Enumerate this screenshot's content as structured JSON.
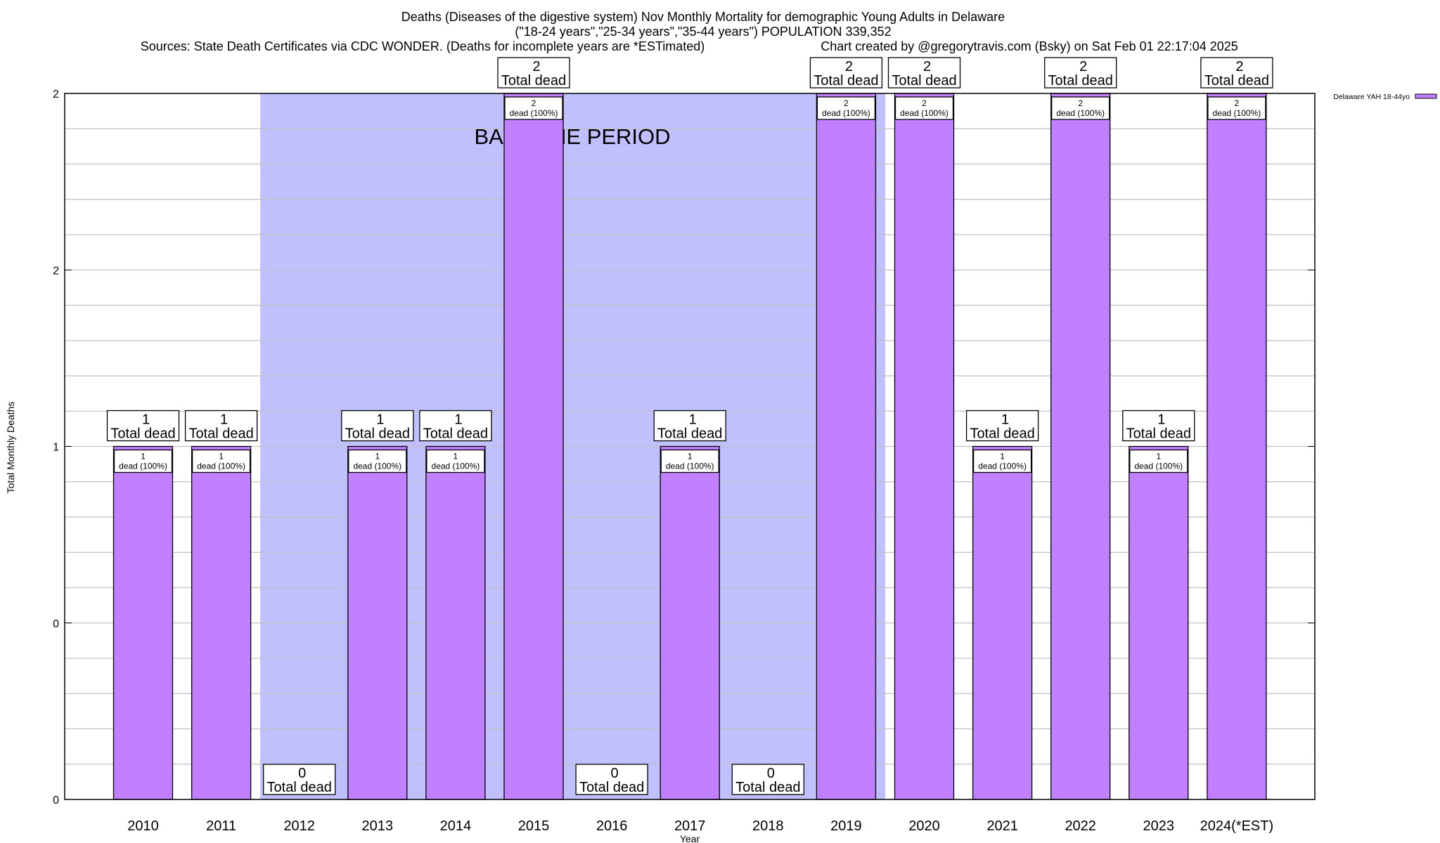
{
  "chart_data": {
    "type": "bar",
    "title_lines": [
      "Deaths (Diseases of the digestive system) Nov Monthly Mortality for demographic Young Adults in Delaware",
      "(\"18-24 years\",\"25-34 years\",\"35-44 years\") POPULATION 339,352"
    ],
    "sources": "Sources: State Death Certificates via CDC WONDER. (Deaths for incomplete years are *ESTimated)",
    "credit": "Chart created by @gregorytravis.com (Bsky) on Sat Feb 01 22:17:04 2025",
    "xlabel": "Year",
    "ylabel": "Total Monthly Deaths",
    "ylim": [
      0,
      2
    ],
    "yticks": [
      {
        "value": 0,
        "label": "0"
      },
      {
        "value": 0.5,
        "label": "0"
      },
      {
        "value": 1,
        "label": "1"
      },
      {
        "value": 1.5,
        "label": "2"
      },
      {
        "value": 2,
        "label": "2"
      }
    ],
    "grid": true,
    "categories": [
      "2010",
      "2011",
      "2012",
      "2013",
      "2014",
      "2015",
      "2016",
      "2017",
      "2018",
      "2019",
      "2020",
      "2021",
      "2022",
      "2023",
      "2024(*EST)"
    ],
    "series": [
      {
        "name": "Delaware YAH 18-44yo",
        "color": "#c080ff",
        "values": [
          1,
          1,
          0,
          1,
          1,
          2,
          0,
          1,
          0,
          2,
          2,
          1,
          2,
          1,
          2
        ]
      }
    ],
    "total_label_suffix": "Total dead",
    "inner_label_suffix": "dead (100%)",
    "baseline": {
      "label": "BASELINE PERIOD",
      "from_category": "2012",
      "to_category": "2019",
      "color": "#c0c0ff"
    },
    "legend_position": "top-right"
  }
}
